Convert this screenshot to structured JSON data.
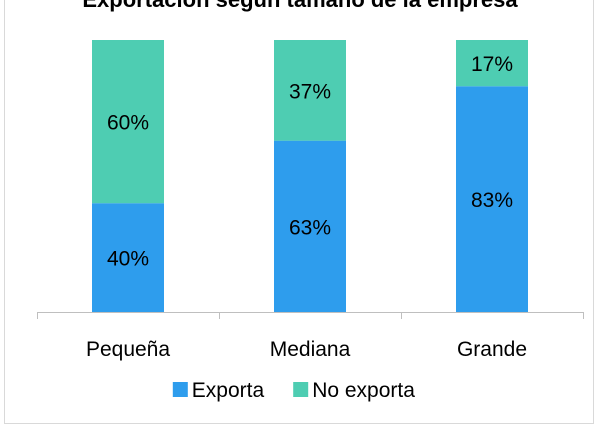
{
  "chart_data": {
    "type": "bar",
    "stacked": true,
    "percent": true,
    "title": "Exportación según tamaño de la empresa",
    "categories": [
      "Pequeña",
      "Mediana",
      "Grande"
    ],
    "series": [
      {
        "name": "Exporta",
        "color": "#2e9ded",
        "values": [
          40,
          63,
          83
        ],
        "labels": [
          "40%",
          "63%",
          "83%"
        ]
      },
      {
        "name": "No exporta",
        "color": "#4ecdb2",
        "values": [
          60,
          37,
          17
        ],
        "labels": [
          "60%",
          "37%",
          "17%"
        ]
      }
    ],
    "ylim": [
      0,
      100
    ],
    "grid": false,
    "legend_position": "bottom"
  }
}
